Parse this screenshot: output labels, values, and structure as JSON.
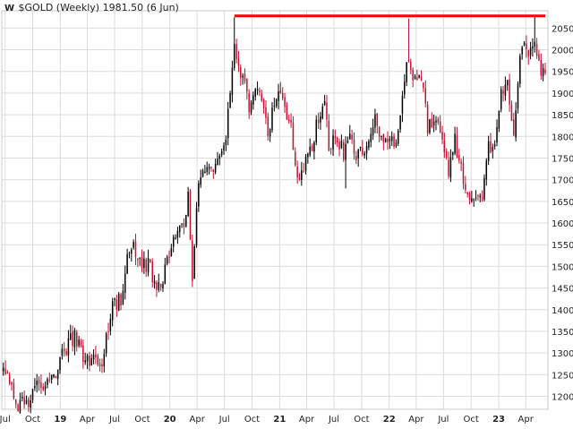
{
  "colors": {
    "up": "#000000",
    "down": "#c8102e",
    "resistance": "#ff0000",
    "grid": "#dcdcdc",
    "frame": "#c8c8c8"
  },
  "chart_data": {
    "type": "candlestick",
    "title": "$GOLD (Weekly) 1981.50 (6 Jun)",
    "logo": "W",
    "ylim": [
      1170,
      2090
    ],
    "yticks": [
      1200,
      1250,
      1300,
      1350,
      1400,
      1450,
      1500,
      1550,
      1600,
      1650,
      1700,
      1750,
      1800,
      1850,
      1900,
      1950,
      2000,
      2050
    ],
    "xlim": [
      "2018-06-20",
      "2023-06-14"
    ],
    "xticks": [
      {
        "label": "Jul",
        "date": "2018-07-01",
        "year": false
      },
      {
        "label": "Oct",
        "date": "2018-10-01",
        "year": false
      },
      {
        "label": "19",
        "date": "2019-01-01",
        "year": true
      },
      {
        "label": "Apr",
        "date": "2019-04-01",
        "year": false
      },
      {
        "label": "Jul",
        "date": "2019-07-01",
        "year": false
      },
      {
        "label": "Oct",
        "date": "2019-10-01",
        "year": false
      },
      {
        "label": "20",
        "date": "2020-01-01",
        "year": true
      },
      {
        "label": "Apr",
        "date": "2020-04-01",
        "year": false
      },
      {
        "label": "Jul",
        "date": "2020-07-01",
        "year": false
      },
      {
        "label": "Oct",
        "date": "2020-10-01",
        "year": false
      },
      {
        "label": "21",
        "date": "2021-01-01",
        "year": true
      },
      {
        "label": "Apr",
        "date": "2021-04-01",
        "year": false
      },
      {
        "label": "Jul",
        "date": "2021-07-01",
        "year": false
      },
      {
        "label": "Oct",
        "date": "2021-10-01",
        "year": false
      },
      {
        "label": "22",
        "date": "2022-01-01",
        "year": true
      },
      {
        "label": "Apr",
        "date": "2022-04-01",
        "year": false
      },
      {
        "label": "Jul",
        "date": "2022-07-01",
        "year": false
      },
      {
        "label": "Oct",
        "date": "2022-10-01",
        "year": false
      },
      {
        "label": "23",
        "date": "2023-01-01",
        "year": true
      },
      {
        "label": "Apr",
        "date": "2023-04-01",
        "year": false
      }
    ],
    "resistance_line": {
      "value": 2078,
      "from": "2020-08-03",
      "to": "2023-06-05"
    },
    "grid": true,
    "path": [
      [
        "2018-06-25",
        1255
      ],
      [
        "2018-07-16",
        1228
      ],
      [
        "2018-08-13",
        1184
      ],
      [
        "2018-09-24",
        1196
      ],
      [
        "2018-10-22",
        1232
      ],
      [
        "2018-11-26",
        1222
      ],
      [
        "2018-12-31",
        1282
      ],
      [
        "2019-01-28",
        1320
      ],
      [
        "2019-02-18",
        1338
      ],
      [
        "2019-03-11",
        1300
      ],
      [
        "2019-04-15",
        1276
      ],
      [
        "2019-05-20",
        1284
      ],
      [
        "2019-06-03",
        1340
      ],
      [
        "2019-06-24",
        1410
      ],
      [
        "2019-07-22",
        1428
      ],
      [
        "2019-08-12",
        1510
      ],
      [
        "2019-09-02",
        1540
      ],
      [
        "2019-09-30",
        1500
      ],
      [
        "2019-10-21",
        1505
      ],
      [
        "2019-11-11",
        1462
      ],
      [
        "2019-12-09",
        1470
      ],
      [
        "2019-12-30",
        1528
      ],
      [
        "2020-01-20",
        1570
      ],
      [
        "2020-02-17",
        1605
      ],
      [
        "2020-03-02",
        1670
      ],
      [
        "2020-03-16",
        1482
      ],
      [
        "2020-04-06",
        1690
      ],
      [
        "2020-05-11",
        1730
      ],
      [
        "2020-06-08",
        1730
      ],
      [
        "2020-07-06",
        1800
      ],
      [
        "2020-07-27",
        1965
      ],
      [
        "2020-08-03",
        2025
      ],
      [
        "2020-08-17",
        1945
      ],
      [
        "2020-09-07",
        1945
      ],
      [
        "2020-09-21",
        1870
      ],
      [
        "2020-10-12",
        1905
      ],
      [
        "2020-11-09",
        1870
      ],
      [
        "2020-11-23",
        1785
      ],
      [
        "2020-12-14",
        1880
      ],
      [
        "2021-01-04",
        1905
      ],
      [
        "2021-01-18",
        1850
      ],
      [
        "2021-02-08",
        1820
      ],
      [
        "2021-03-01",
        1710
      ],
      [
        "2021-03-22",
        1730
      ],
      [
        "2021-04-19",
        1780
      ],
      [
        "2021-05-10",
        1840
      ],
      [
        "2021-06-01",
        1900
      ],
      [
        "2021-06-14",
        1775
      ],
      [
        "2021-07-05",
        1805
      ],
      [
        "2021-08-02",
        1765
      ],
      [
        "2021-08-23",
        1795
      ],
      [
        "2021-09-13",
        1760
      ],
      [
        "2021-10-04",
        1760
      ],
      [
        "2021-10-25",
        1795
      ],
      [
        "2021-11-15",
        1860
      ],
      [
        "2021-11-29",
        1785
      ],
      [
        "2022-01-03",
        1800
      ],
      [
        "2022-01-24",
        1790
      ],
      [
        "2022-02-07",
        1860
      ],
      [
        "2022-02-28",
        1970
      ],
      [
        "2022-03-07",
        1990
      ],
      [
        "2022-03-21",
        1930
      ],
      [
        "2022-04-18",
        1935
      ],
      [
        "2022-05-09",
        1820
      ],
      [
        "2022-06-06",
        1840
      ],
      [
        "2022-06-27",
        1810
      ],
      [
        "2022-07-18",
        1710
      ],
      [
        "2022-08-08",
        1790
      ],
      [
        "2022-08-22",
        1745
      ],
      [
        "2022-09-12",
        1665
      ],
      [
        "2022-10-10",
        1660
      ],
      [
        "2022-11-07",
        1640
      ],
      [
        "2022-11-21",
        1760
      ],
      [
        "2022-12-19",
        1800
      ],
      [
        "2023-01-09",
        1900
      ],
      [
        "2023-01-30",
        1930
      ],
      [
        "2023-02-20",
        1810
      ],
      [
        "2023-03-13",
        1980
      ],
      [
        "2023-04-03",
        2010
      ],
      [
        "2023-04-17",
        1990
      ],
      [
        "2023-05-01",
        2018
      ],
      [
        "2023-05-15",
        1960
      ],
      [
        "2023-05-29",
        1950
      ],
      [
        "2023-06-05",
        1965
      ]
    ],
    "wick_scale": 0.5,
    "spikes": [
      {
        "date": "2020-08-03",
        "high": 2075
      },
      {
        "date": "2021-08-09",
        "low": 1680
      },
      {
        "date": "2022-03-07",
        "high": 2072
      },
      {
        "date": "2023-05-01",
        "high": 2080
      },
      {
        "date": "2020-03-16",
        "low": 1452
      },
      {
        "date": "2018-08-13",
        "low": 1165
      }
    ]
  }
}
